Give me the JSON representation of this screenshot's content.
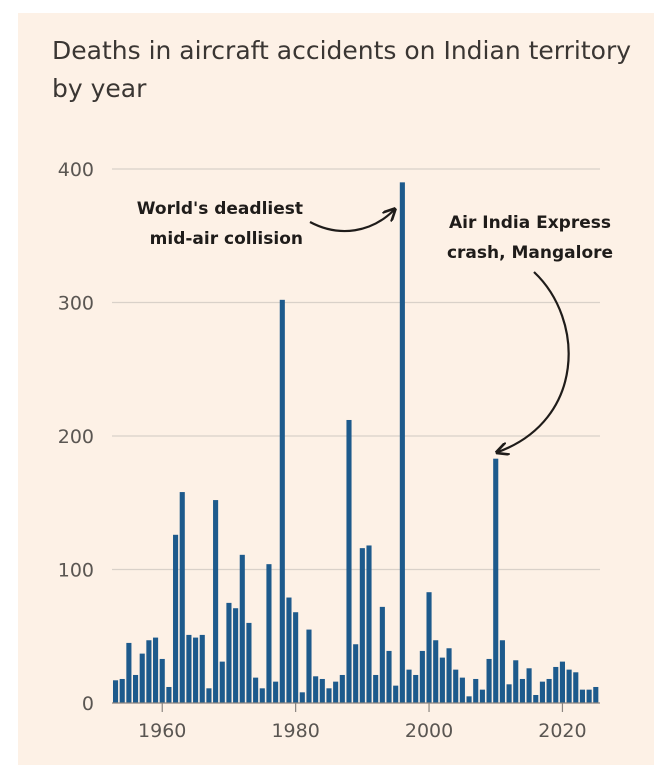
{
  "chart_data": {
    "type": "bar",
    "title": "Deaths in aircraft accidents on Indian territory by year",
    "xlabel": "",
    "ylabel": "",
    "ylim": [
      0,
      400
    ],
    "y_ticks": [
      "0",
      "100",
      "200",
      "300",
      "400"
    ],
    "x_ticks": [
      "1960",
      "1980",
      "2000",
      "2020"
    ],
    "grid": true,
    "bar_color": "#1d5a8c",
    "years": [
      1953,
      1954,
      1955,
      1956,
      1957,
      1958,
      1959,
      1960,
      1961,
      1962,
      1963,
      1964,
      1965,
      1966,
      1967,
      1968,
      1969,
      1970,
      1971,
      1972,
      1973,
      1974,
      1975,
      1976,
      1977,
      1978,
      1979,
      1980,
      1981,
      1982,
      1983,
      1984,
      1985,
      1986,
      1987,
      1988,
      1989,
      1990,
      1991,
      1992,
      1993,
      1994,
      1995,
      1996,
      1997,
      1998,
      1999,
      2000,
      2001,
      2002,
      2003,
      2004,
      2005,
      2006,
      2007,
      2008,
      2009,
      2010,
      2011,
      2012,
      2013,
      2014,
      2015,
      2016,
      2017,
      2018,
      2019,
      2020,
      2021,
      2022,
      2023,
      2024,
      2025
    ],
    "values": [
      17,
      18,
      45,
      21,
      37,
      47,
      49,
      33,
      12,
      126,
      158,
      51,
      49,
      51,
      11,
      152,
      31,
      75,
      71,
      111,
      60,
      19,
      11,
      104,
      16,
      302,
      79,
      68,
      8,
      55,
      20,
      18,
      11,
      16,
      21,
      212,
      44,
      116,
      118,
      21,
      72,
      39,
      13,
      390,
      25,
      21,
      39,
      83,
      47,
      34,
      41,
      25,
      19,
      5,
      18,
      10,
      33,
      183,
      47,
      14,
      32,
      18,
      26,
      6,
      16,
      18,
      27,
      31,
      25,
      23,
      10,
      10,
      12
    ],
    "annotations": [
      {
        "lines": [
          "World's deadliest",
          "mid-air collision"
        ]
      },
      {
        "lines": [
          "Air India Express",
          "crash, Mangalore"
        ]
      }
    ]
  }
}
